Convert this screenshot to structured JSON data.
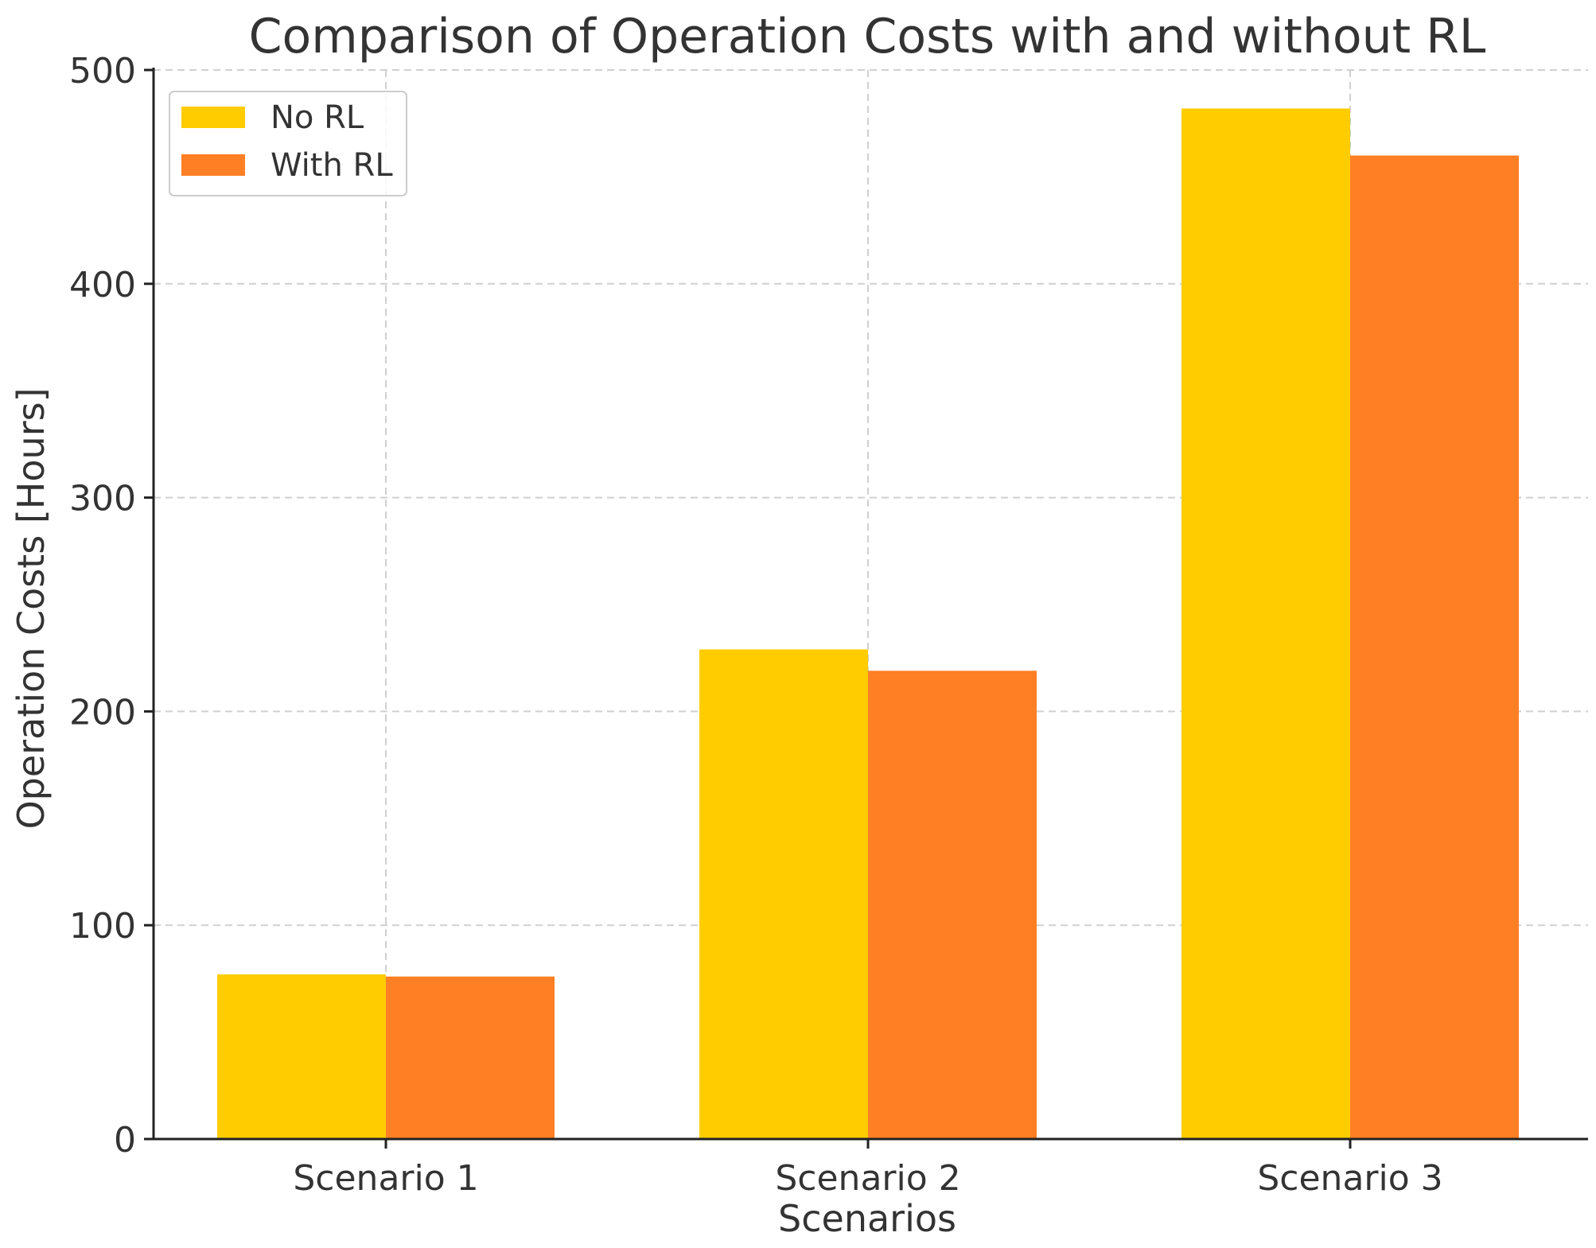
{
  "chart_data": {
    "type": "bar",
    "title": "Comparison of Operation Costs with and without RL",
    "xlabel": "Scenarios",
    "ylabel": "Operation Costs [Hours]",
    "categories": [
      "Scenario 1",
      "Scenario 2",
      "Scenario 3"
    ],
    "series": [
      {
        "name": "No RL",
        "values": [
          77,
          229,
          482
        ],
        "color": "#FFCC00"
      },
      {
        "name": "With RL",
        "values": [
          76,
          219,
          460
        ],
        "color": "#FF7F24"
      }
    ],
    "ylim": [
      0,
      500
    ],
    "yticks": [
      0,
      100,
      200,
      300,
      400,
      500
    ],
    "grid": true,
    "legend_position": "top-left"
  }
}
